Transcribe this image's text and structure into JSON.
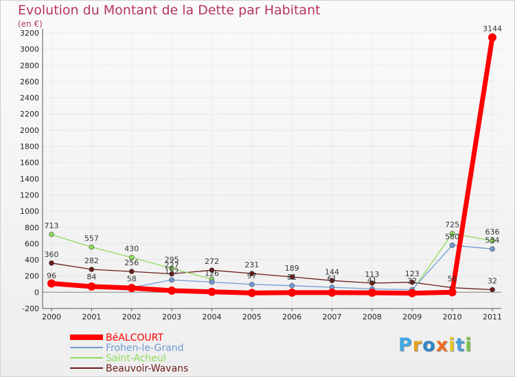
{
  "colors": {
    "title": "#b5345f",
    "grid": "#cccccc",
    "zero_line": "#999999",
    "axis": "#555555",
    "logo": [
      "#3fa9e1",
      "#e9a21c",
      "#2f86c8",
      "#ee6c1f",
      "#e8c520",
      "#4a9fd8",
      "#7cc243"
    ]
  },
  "logo": {
    "text": "Proxiti"
  },
  "chart_data": {
    "type": "line",
    "title": "Evolution du Montant de la Dette par Habitant",
    "subtitle": "(en €)",
    "xlabel": "",
    "ylabel": "",
    "ylim": [
      -200,
      3200
    ],
    "ytick_step": 200,
    "grid": true,
    "x": [
      2000,
      2001,
      2002,
      2003,
      2004,
      2005,
      2006,
      2007,
      2008,
      2009,
      2010,
      2011
    ],
    "legend_position": "bottom-left",
    "series": [
      {
        "name": "BéALCOURT",
        "color": "#ff0000",
        "width": 7,
        "marker_r": 6,
        "values": [
          109,
          71,
          53,
          20,
          5,
          -9,
          -5,
          -5,
          -6,
          -11,
          0,
          3144
        ],
        "labels": [
          null,
          null,
          null,
          null,
          null,
          null,
          null,
          null,
          null,
          null,
          null,
          "3144"
        ]
      },
      {
        "name": "Frohen-le-Grand",
        "color": "#6f9bd3",
        "width": 1.3,
        "marker_r": 3.5,
        "values": [
          96,
          84,
          58,
          152,
          126,
          97,
          81,
          61,
          41,
          32,
          580,
          534
        ],
        "labels": [
          "96",
          "84",
          "58",
          "152",
          "126",
          "97",
          "81",
          "61",
          "41",
          "32",
          "580",
          "534"
        ]
      },
      {
        "name": "Saint-Acheul",
        "color": "#8fdc5c",
        "width": 1.3,
        "marker_r": 3.5,
        "values": [
          713,
          557,
          430,
          295,
          160,
          null,
          null,
          null,
          null,
          19,
          725,
          636
        ],
        "labels": [
          "713",
          "557",
          "430",
          "295",
          null,
          null,
          null,
          null,
          null,
          null,
          "725",
          "636"
        ]
      },
      {
        "name": "Beauvoir-Wavans",
        "color": "#6b1a1a",
        "width": 1.3,
        "marker_r": 3.5,
        "values": [
          360,
          282,
          256,
          227,
          272,
          231,
          189,
          144,
          113,
          123,
          56,
          32
        ],
        "labels": [
          "360",
          "282",
          "256",
          "227",
          "272",
          "231",
          "189",
          "144",
          "113",
          "123",
          "56",
          "32"
        ]
      }
    ]
  }
}
